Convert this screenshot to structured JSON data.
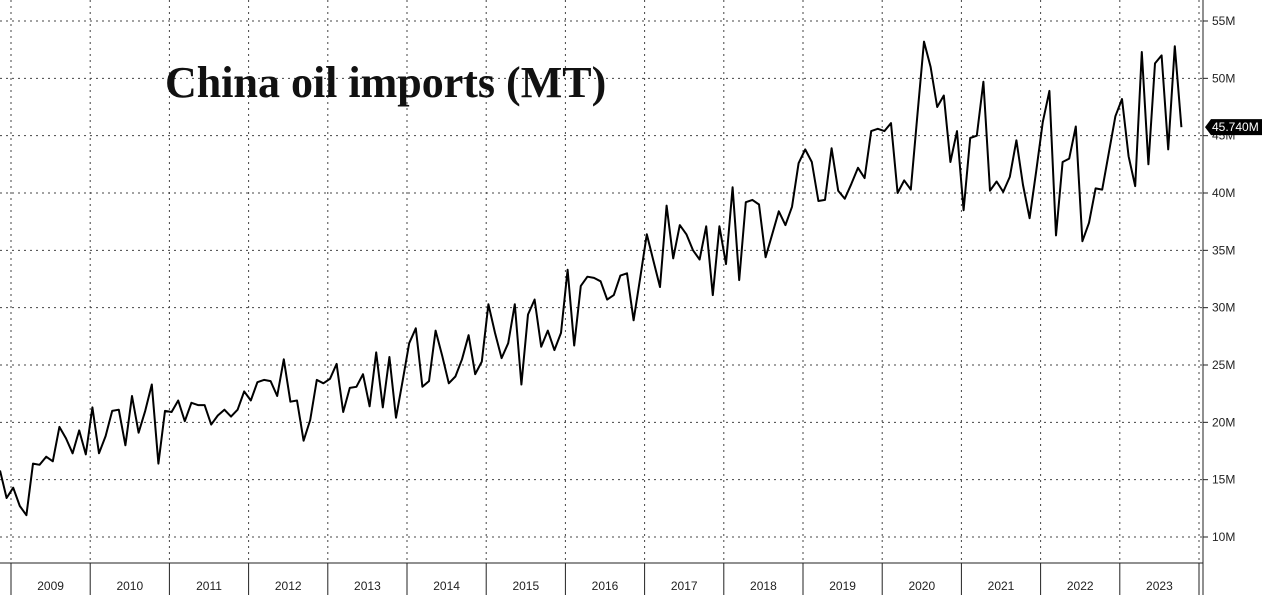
{
  "chart_data": {
    "type": "line",
    "title": "China oil imports (MT)",
    "xlabel": "",
    "ylabel": "",
    "ylim": [
      9000000,
      57000000
    ],
    "y_ticks": [
      10000000,
      15000000,
      20000000,
      25000000,
      30000000,
      35000000,
      40000000,
      45000000,
      50000000,
      55000000
    ],
    "y_tick_labels": [
      "10M",
      "15M",
      "20M",
      "25M",
      "30M",
      "35M",
      "40M",
      "45M",
      "50M",
      "55M"
    ],
    "x_tick_labels": [
      "2009",
      "2010",
      "2011",
      "2012",
      "2013",
      "2014",
      "2015",
      "2016",
      "2017",
      "2018",
      "2019",
      "2020",
      "2021",
      "2022",
      "2023"
    ],
    "start_month": "2009-01",
    "last_value_label": "45.740M",
    "grid": true,
    "series": [
      {
        "values": [
          15.8,
          13.4,
          14.3,
          12.7,
          11.9,
          16.4,
          16.3,
          17.0,
          16.6,
          19.6,
          18.6,
          17.3,
          19.3,
          17.2,
          21.3,
          17.3,
          18.8,
          21.0,
          21.1,
          18.0,
          22.3,
          19.1,
          21.0,
          23.3,
          16.4,
          21.0,
          20.9,
          21.9,
          20.1,
          21.7,
          21.5,
          21.5,
          19.8,
          20.6,
          21.1,
          20.5,
          21.1,
          22.7,
          21.9,
          23.5,
          23.7,
          23.6,
          22.3,
          25.5,
          21.8,
          21.9,
          18.4,
          20.2,
          23.7,
          23.4,
          23.8,
          25.1,
          20.9,
          23.0,
          23.1,
          24.2,
          21.4,
          26.1,
          21.3,
          25.7,
          20.4,
          23.6,
          26.9,
          28.2,
          23.1,
          23.6,
          28.0,
          25.8,
          23.4,
          24.0,
          25.5,
          27.6,
          24.2,
          25.3,
          30.3,
          27.8,
          25.6,
          26.9,
          30.3,
          23.3,
          29.4,
          30.7,
          26.6,
          28.0,
          26.3,
          27.8,
          33.3,
          26.7,
          31.9,
          32.7,
          32.6,
          32.3,
          30.7,
          31.1,
          32.8,
          33.0,
          28.9,
          32.6,
          36.4,
          34.1,
          31.8,
          38.9,
          34.3,
          37.2,
          36.4,
          35.0,
          34.2,
          37.1,
          31.1,
          37.1,
          33.8,
          40.5,
          32.4,
          39.2,
          39.4,
          39.0,
          34.4,
          36.4,
          38.4,
          37.2,
          38.8,
          42.6,
          43.8,
          42.7,
          39.3,
          39.4,
          43.9,
          40.2,
          39.5,
          40.8,
          42.2,
          41.3,
          45.4,
          45.6,
          45.4,
          46.1,
          40.0,
          41.1,
          40.3,
          46.8,
          53.2,
          51.0,
          47.5,
          48.5,
          42.7,
          45.4,
          38.5,
          44.8,
          45.0,
          49.7,
          40.2,
          41.0,
          40.1,
          41.4,
          44.6,
          40.7,
          37.8,
          41.9,
          46.2,
          48.9,
          36.3,
          42.7,
          43.0,
          45.8,
          35.8,
          37.4,
          40.4,
          40.3,
          43.5,
          46.7,
          48.2,
          43.2,
          40.6,
          52.3,
          42.5,
          51.3,
          52.0,
          43.8,
          52.8,
          45.74
        ]
      }
    ]
  }
}
